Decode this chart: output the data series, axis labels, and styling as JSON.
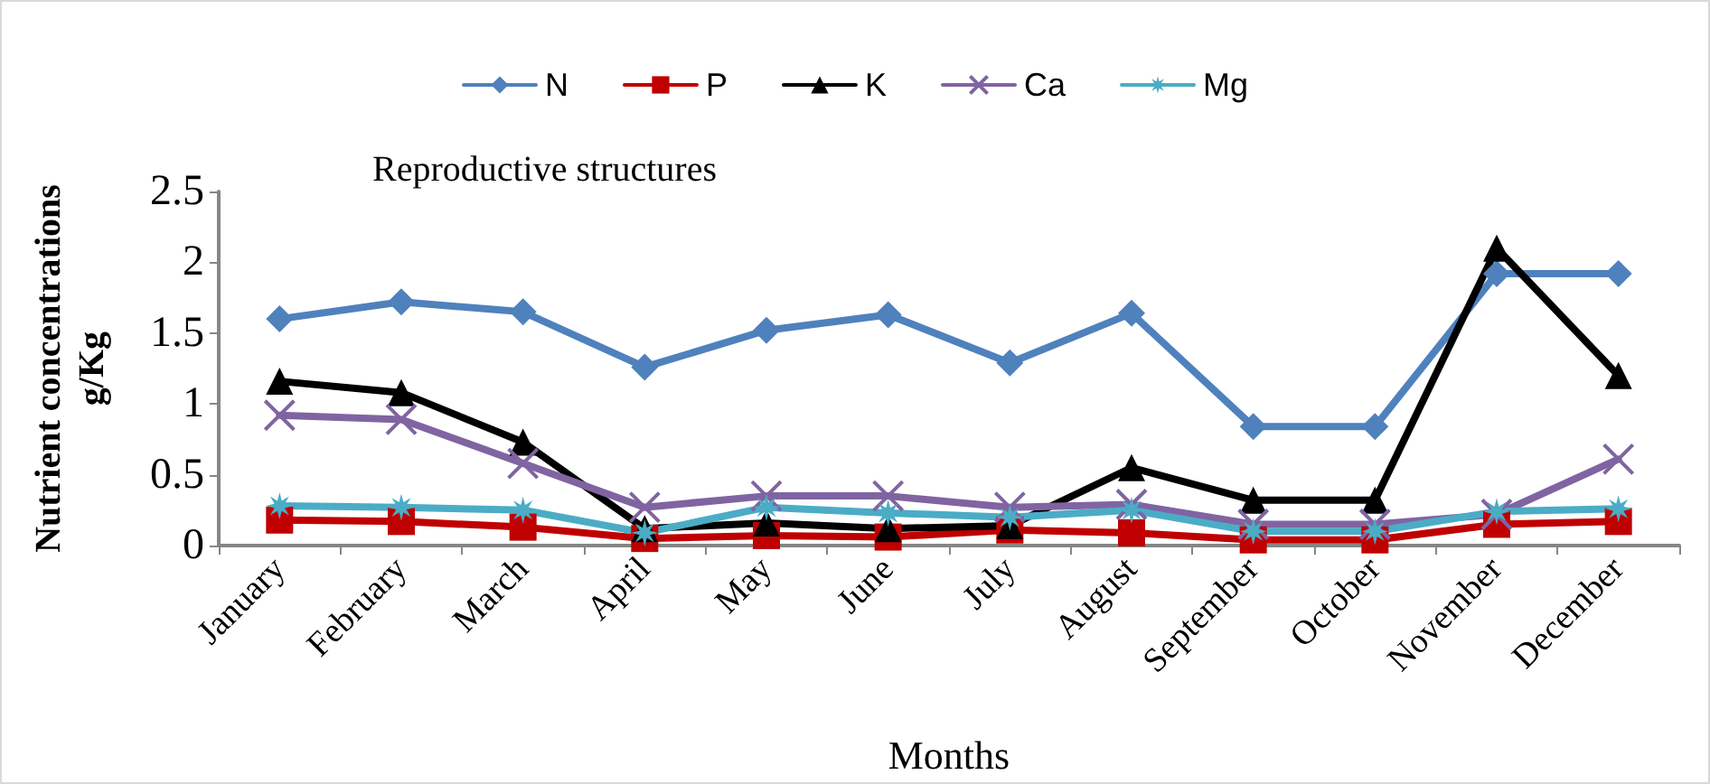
{
  "chart_data": {
    "type": "line",
    "title": "Reproductive structures",
    "xlabel": "Months",
    "ylabel": "Nutrient concentrations\ng/Kg",
    "categories": [
      "January",
      "February",
      "March",
      "April",
      "May",
      "June",
      "July",
      "August",
      "September",
      "October",
      "November",
      "December"
    ],
    "series": [
      {
        "name": "N",
        "color": "#4f81bd",
        "marker": "diamond",
        "values": [
          1.6,
          1.72,
          1.65,
          1.26,
          1.52,
          1.63,
          1.29,
          1.64,
          0.84,
          0.84,
          1.92,
          1.92
        ]
      },
      {
        "name": "P",
        "color": "#c00000",
        "marker": "square",
        "values": [
          0.18,
          0.17,
          0.13,
          0.05,
          0.07,
          0.06,
          0.11,
          0.09,
          0.04,
          0.04,
          0.15,
          0.17
        ]
      },
      {
        "name": "K",
        "color": "#000000",
        "marker": "triangle",
        "values": [
          1.16,
          1.08,
          0.73,
          0.12,
          0.16,
          0.12,
          0.14,
          0.55,
          0.32,
          0.32,
          2.1,
          1.2
        ]
      },
      {
        "name": "Ca",
        "color": "#8064a2",
        "marker": "cross",
        "values": [
          0.92,
          0.89,
          0.58,
          0.27,
          0.35,
          0.35,
          0.27,
          0.29,
          0.15,
          0.15,
          0.22,
          0.61
        ]
      },
      {
        "name": "Mg",
        "color": "#4bacc6",
        "marker": "star",
        "values": [
          0.28,
          0.27,
          0.25,
          0.09,
          0.27,
          0.23,
          0.2,
          0.25,
          0.1,
          0.1,
          0.24,
          0.26
        ]
      }
    ],
    "ylim": [
      0,
      2.5
    ],
    "yticks": [
      0,
      0.5,
      1,
      1.5,
      2,
      2.5
    ],
    "grid": false,
    "legend": "top",
    "line_style": "solid"
  }
}
